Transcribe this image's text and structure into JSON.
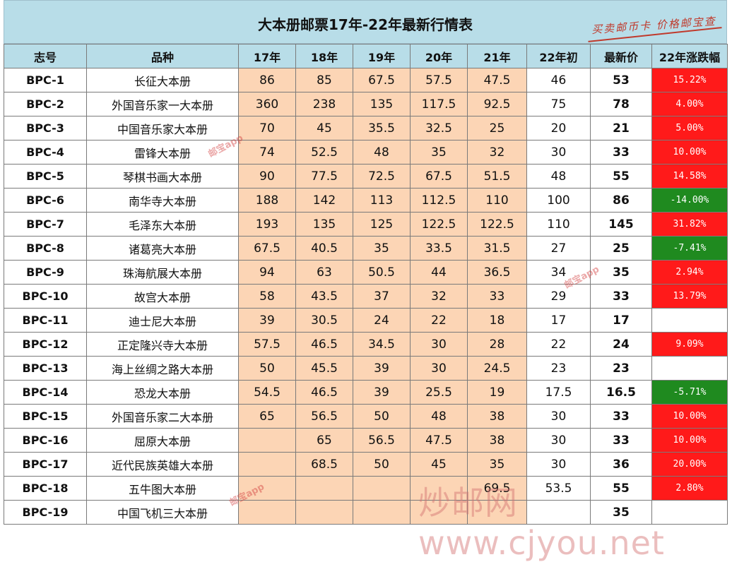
{
  "title": "大本册邮票17年-22年最新行情表",
  "stamp_text": "买卖邮币卡 价格邮宝查",
  "headers": [
    "志号",
    "品种",
    "17年",
    "18年",
    "19年",
    "20年",
    "21年",
    "22年初",
    "最新价",
    "22年涨跌幅"
  ],
  "rows": [
    {
      "code": "BPC-1",
      "name": "长征大本册",
      "y17": "86",
      "y18": "85",
      "y19": "67.5",
      "y20": "57.5",
      "y21": "47.5",
      "init22": "46",
      "latest": "53",
      "change": "15.22%",
      "trend": "up"
    },
    {
      "code": "BPC-2",
      "name": "外国音乐家一大本册",
      "y17": "360",
      "y18": "238",
      "y19": "135",
      "y20": "117.5",
      "y21": "92.5",
      "init22": "75",
      "latest": "78",
      "change": "4.00%",
      "trend": "up"
    },
    {
      "code": "BPC-3",
      "name": "中国音乐家大本册",
      "y17": "70",
      "y18": "45",
      "y19": "35.5",
      "y20": "32.5",
      "y21": "25",
      "init22": "20",
      "latest": "21",
      "change": "5.00%",
      "trend": "up"
    },
    {
      "code": "BPC-4",
      "name": "雷锋大本册",
      "y17": "74",
      "y18": "52.5",
      "y19": "48",
      "y20": "35",
      "y21": "32",
      "init22": "30",
      "latest": "33",
      "change": "10.00%",
      "trend": "up"
    },
    {
      "code": "BPC-5",
      "name": "琴棋书画大本册",
      "y17": "90",
      "y18": "77.5",
      "y19": "72.5",
      "y20": "67.5",
      "y21": "51.5",
      "init22": "48",
      "latest": "55",
      "change": "14.58%",
      "trend": "up"
    },
    {
      "code": "BPC-6",
      "name": "南华寺大本册",
      "y17": "188",
      "y18": "142",
      "y19": "113",
      "y20": "112.5",
      "y21": "110",
      "init22": "100",
      "latest": "86",
      "change": "-14.00%",
      "trend": "down"
    },
    {
      "code": "BPC-7",
      "name": "毛泽东大本册",
      "y17": "193",
      "y18": "135",
      "y19": "125",
      "y20": "122.5",
      "y21": "122.5",
      "init22": "110",
      "latest": "145",
      "change": "31.82%",
      "trend": "up"
    },
    {
      "code": "BPC-8",
      "name": "诸葛亮大本册",
      "y17": "67.5",
      "y18": "40.5",
      "y19": "35",
      "y20": "33.5",
      "y21": "31.5",
      "init22": "27",
      "latest": "25",
      "change": "-7.41%",
      "trend": "down"
    },
    {
      "code": "BPC-9",
      "name": "珠海航展大本册",
      "y17": "94",
      "y18": "63",
      "y19": "50.5",
      "y20": "44",
      "y21": "36.5",
      "init22": "34",
      "latest": "35",
      "change": "2.94%",
      "trend": "up"
    },
    {
      "code": "BPC-10",
      "name": "故宫大本册",
      "y17": "58",
      "y18": "43.5",
      "y19": "37",
      "y20": "32",
      "y21": "33",
      "init22": "29",
      "latest": "33",
      "change": "13.79%",
      "trend": "up"
    },
    {
      "code": "BPC-11",
      "name": "迪士尼大本册",
      "y17": "39",
      "y18": "30.5",
      "y19": "24",
      "y20": "22",
      "y21": "18",
      "init22": "17",
      "latest": "17",
      "change": "",
      "trend": "none"
    },
    {
      "code": "BPC-12",
      "name": "正定隆兴寺大本册",
      "y17": "57.5",
      "y18": "46.5",
      "y19": "34.5",
      "y20": "30",
      "y21": "28",
      "init22": "22",
      "latest": "24",
      "change": "9.09%",
      "trend": "up"
    },
    {
      "code": "BPC-13",
      "name": "海上丝绸之路大本册",
      "y17": "50",
      "y18": "45.5",
      "y19": "39",
      "y20": "30",
      "y21": "24.5",
      "init22": "23",
      "latest": "23",
      "change": "",
      "trend": "none"
    },
    {
      "code": "BPC-14",
      "name": "恐龙大本册",
      "y17": "54.5",
      "y18": "46.5",
      "y19": "39",
      "y20": "25.5",
      "y21": "19",
      "init22": "17.5",
      "latest": "16.5",
      "change": "-5.71%",
      "trend": "down"
    },
    {
      "code": "BPC-15",
      "name": "外国音乐家二大本册",
      "y17": "65",
      "y18": "56.5",
      "y19": "50",
      "y20": "48",
      "y21": "38",
      "init22": "30",
      "latest": "33",
      "change": "10.00%",
      "trend": "up"
    },
    {
      "code": "BPC-16",
      "name": "屈原大本册",
      "y17": "",
      "y18": "65",
      "y19": "56.5",
      "y20": "47.5",
      "y21": "38",
      "init22": "30",
      "latest": "33",
      "change": "10.00%",
      "trend": "up"
    },
    {
      "code": "BPC-17",
      "name": "近代民族英雄大本册",
      "y17": "",
      "y18": "68.5",
      "y19": "50",
      "y20": "45",
      "y21": "35",
      "init22": "30",
      "latest": "36",
      "change": "20.00%",
      "trend": "up"
    },
    {
      "code": "BPC-18",
      "name": "五牛图大本册",
      "y17": "",
      "y18": "",
      "y19": "",
      "y20": "",
      "y21": "69.5",
      "init22": "53.5",
      "latest": "55",
      "change": "2.80%",
      "trend": "up"
    },
    {
      "code": "BPC-19",
      "name": "中国飞机三大本册",
      "y17": "",
      "y18": "",
      "y19": "",
      "y20": "",
      "y21": "",
      "init22": "",
      "latest": "35",
      "change": "",
      "trend": "none"
    }
  ],
  "watermarks": [
    "邮宝app",
    "邮宝app",
    "邮宝app"
  ],
  "site_watermark": "炒邮网 www.cjyou.net"
}
